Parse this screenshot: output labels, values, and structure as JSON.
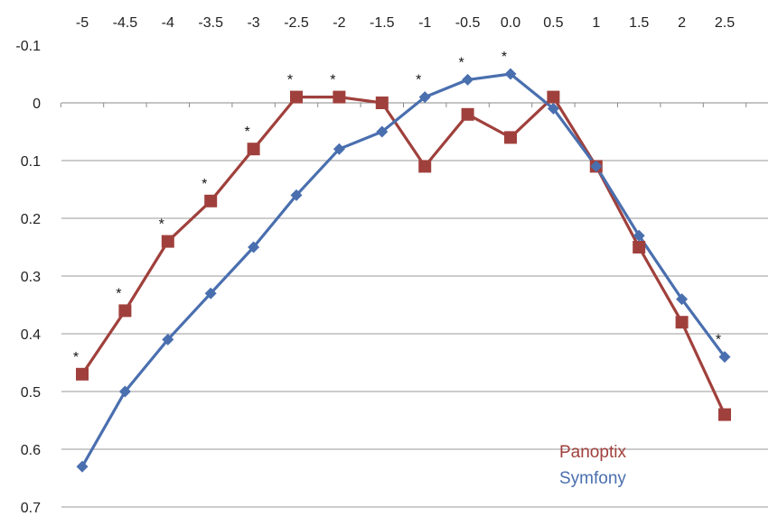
{
  "chart_data": {
    "type": "line",
    "title": "",
    "xlabel": "",
    "ylabel": "",
    "x": [
      -5,
      -4.5,
      -4,
      -3.5,
      -3,
      -2.5,
      -2,
      -1.5,
      -1,
      -0.5,
      0.0,
      0.5,
      1,
      1.5,
      2,
      2.5
    ],
    "x_tick_labels": [
      "-5",
      "-4.5",
      "-4",
      "-3.5",
      "-3",
      "-2.5",
      "-2",
      "-1.5",
      "-1",
      "-0.5",
      "0.0",
      "0.5",
      "1",
      "1.5",
      "2",
      "2.5"
    ],
    "y_tick_labels": [
      "-0.1",
      "0",
      "0.1",
      "0.2",
      "0.3",
      "0.4",
      "0.5",
      "0.6",
      "0.7"
    ],
    "ylim": [
      -0.1,
      0.7
    ],
    "y_axis_inverted": true,
    "x_axis_position": "top",
    "grid": "horizontal",
    "legend_position": "bottom-right",
    "series": [
      {
        "name": "Panoptix",
        "color": "#A0403C",
        "marker": "square",
        "values": [
          0.47,
          0.36,
          0.24,
          0.17,
          0.08,
          -0.01,
          -0.01,
          0.0,
          0.11,
          0.02,
          0.06,
          -0.01,
          0.11,
          0.25,
          0.38,
          0.54
        ]
      },
      {
        "name": "Symfony",
        "color": "#4A6FAF",
        "marker": "diamond",
        "values": [
          0.63,
          0.5,
          0.41,
          0.33,
          0.25,
          0.16,
          0.08,
          0.05,
          -0.01,
          -0.04,
          -0.05,
          0.01,
          0.11,
          0.23,
          0.34,
          0.44
        ]
      }
    ],
    "significance_marker": "*",
    "significance_marks": [
      {
        "x": -5,
        "y": 0.47
      },
      {
        "x": -4.5,
        "y": 0.36
      },
      {
        "x": -4,
        "y": 0.24
      },
      {
        "x": -3.5,
        "y": 0.17
      },
      {
        "x": -3,
        "y": 0.08
      },
      {
        "x": -2.5,
        "y": -0.01
      },
      {
        "x": -2,
        "y": -0.01
      },
      {
        "x": -1,
        "y": -0.01
      },
      {
        "x": -0.5,
        "y": -0.04
      },
      {
        "x": 0.0,
        "y": -0.05
      },
      {
        "x": 2.5,
        "y": 0.44
      }
    ]
  }
}
